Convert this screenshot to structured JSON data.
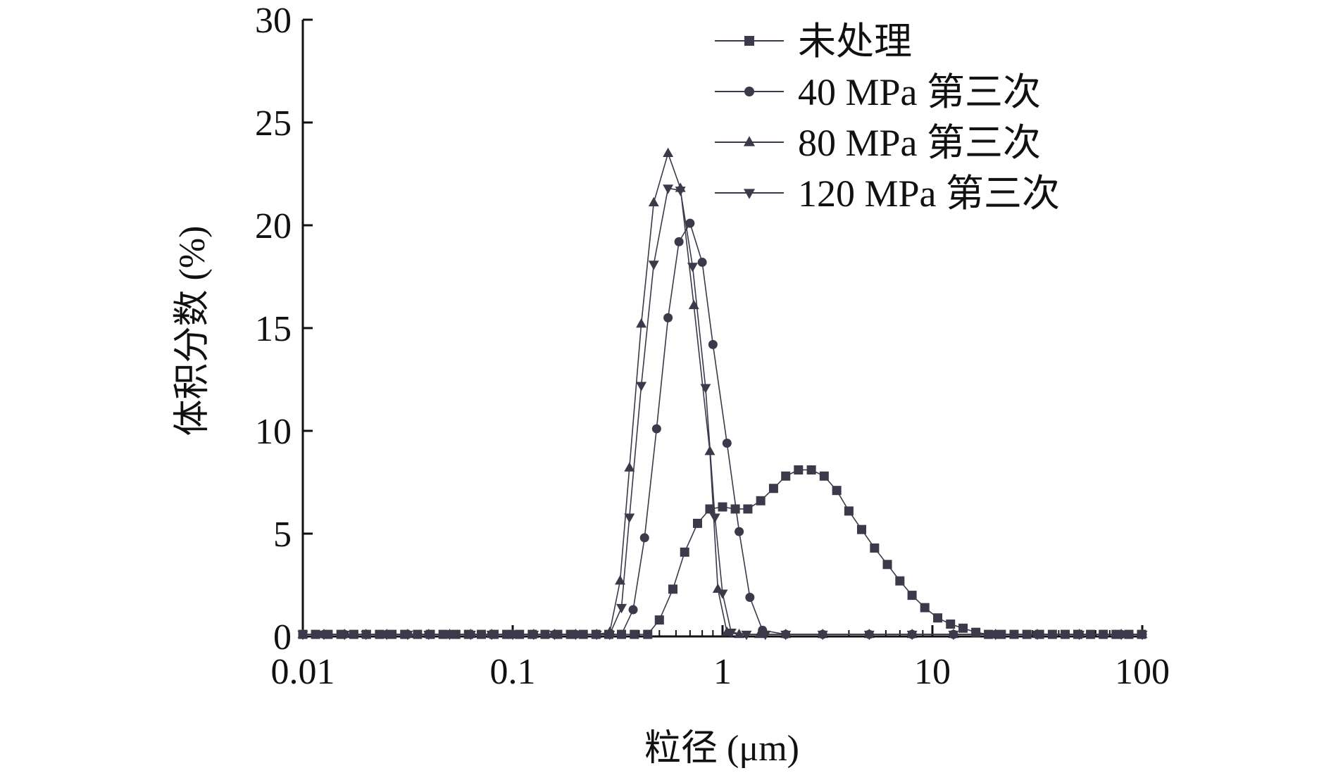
{
  "chart_data": {
    "type": "line",
    "title": "",
    "xlabel": "粒径 (μm)",
    "ylabel": "体积分数 (%)",
    "xscale": "log",
    "xlim": [
      0.01,
      100
    ],
    "ylim": [
      0,
      30
    ],
    "xticks": [
      {
        "value": 0.01,
        "label": "0.01"
      },
      {
        "value": 0.1,
        "label": "0.1"
      },
      {
        "value": 1,
        "label": "1"
      },
      {
        "value": 10,
        "label": "10"
      },
      {
        "value": 100,
        "label": "100"
      }
    ],
    "yticks": [
      {
        "value": 0,
        "label": "0"
      },
      {
        "value": 5,
        "label": "5"
      },
      {
        "value": 10,
        "label": "10"
      },
      {
        "value": 15,
        "label": "15"
      },
      {
        "value": 20,
        "label": "20"
      },
      {
        "value": 25,
        "label": "25"
      },
      {
        "value": 30,
        "label": "30"
      }
    ],
    "grid": false,
    "legend_position": "top-right",
    "line_color": "#3a3a4a",
    "series": [
      {
        "name": "未处理",
        "marker": "square",
        "x": [
          0.01,
          0.0115,
          0.0132,
          0.0152,
          0.0175,
          0.0201,
          0.0232,
          0.0266,
          0.0306,
          0.0352,
          0.0405,
          0.0466,
          0.0536,
          0.0616,
          0.0709,
          0.0815,
          0.0937,
          0.1078,
          0.124,
          0.1426,
          0.164,
          0.1886,
          0.2169,
          0.2494,
          0.287,
          0.33,
          0.38,
          0.44,
          0.5,
          0.58,
          0.66,
          0.76,
          0.87,
          1.0,
          1.15,
          1.32,
          1.52,
          1.75,
          2.0,
          2.3,
          2.65,
          3.05,
          3.5,
          4.0,
          4.6,
          5.3,
          6.1,
          7.0,
          8.0,
          9.2,
          10.6,
          12.2,
          14.0,
          16.1,
          18.5,
          21.3,
          24.5,
          28.2,
          32.4,
          37.3,
          42.9,
          49.3,
          56.7,
          65.2,
          75.0,
          86.3,
          99.2
        ],
        "y": [
          0.1,
          0.1,
          0.1,
          0.1,
          0.1,
          0.1,
          0.1,
          0.1,
          0.1,
          0.1,
          0.1,
          0.1,
          0.1,
          0.1,
          0.1,
          0.1,
          0.1,
          0.1,
          0.1,
          0.1,
          0.1,
          0.1,
          0.1,
          0.1,
          0.1,
          0.1,
          0.1,
          0.1,
          0.8,
          2.3,
          4.1,
          5.5,
          6.2,
          6.3,
          6.2,
          6.2,
          6.6,
          7.2,
          7.8,
          8.1,
          8.1,
          7.8,
          7.1,
          6.1,
          5.2,
          4.3,
          3.5,
          2.7,
          2.0,
          1.4,
          0.9,
          0.6,
          0.4,
          0.2,
          0.1,
          0.1,
          0.1,
          0.1,
          0.1,
          0.1,
          0.1,
          0.1,
          0.1,
          0.1,
          0.1,
          0.1,
          0.1
        ]
      },
      {
        "name": "40 MPa 第三次",
        "marker": "circle",
        "x": [
          0.01,
          0.0126,
          0.0158,
          0.02,
          0.0251,
          0.0316,
          0.0398,
          0.0501,
          0.0631,
          0.0794,
          0.1,
          0.1259,
          0.1585,
          0.1995,
          0.2512,
          0.29,
          0.33,
          0.375,
          0.425,
          0.485,
          0.55,
          0.62,
          0.7,
          0.8,
          0.9,
          1.05,
          1.2,
          1.35,
          1.55,
          2.0,
          3.0,
          5.0,
          8.0,
          12.6,
          20.0,
          31.6,
          50.1,
          79.4,
          100
        ],
        "y": [
          0.1,
          0.1,
          0.1,
          0.1,
          0.1,
          0.1,
          0.1,
          0.1,
          0.1,
          0.1,
          0.1,
          0.1,
          0.1,
          0.1,
          0.1,
          0.1,
          0.1,
          1.3,
          4.8,
          10.1,
          15.5,
          19.2,
          20.1,
          18.2,
          14.2,
          9.4,
          5.1,
          1.9,
          0.3,
          0.1,
          0.1,
          0.1,
          0.1,
          0.1,
          0.1,
          0.1,
          0.1,
          0.1,
          0.1
        ]
      },
      {
        "name": "80 MPa  第三次",
        "marker": "triangle-up",
        "x": [
          0.01,
          0.0126,
          0.0158,
          0.02,
          0.0251,
          0.0316,
          0.0398,
          0.0501,
          0.0631,
          0.0794,
          0.1,
          0.1259,
          0.1585,
          0.1995,
          0.2512,
          0.29,
          0.325,
          0.36,
          0.41,
          0.47,
          0.55,
          0.63,
          0.73,
          0.87,
          0.95,
          1.05,
          1.2,
          1.5,
          2.0,
          3.0,
          5.0,
          8.0,
          12.6,
          20.0,
          31.6,
          50.1,
          79.4,
          100
        ],
        "y": [
          0.1,
          0.1,
          0.1,
          0.1,
          0.1,
          0.1,
          0.1,
          0.1,
          0.1,
          0.1,
          0.1,
          0.1,
          0.1,
          0.1,
          0.1,
          0.2,
          2.7,
          8.2,
          15.2,
          21.1,
          23.5,
          21.8,
          16.1,
          9.0,
          2.3,
          0.2,
          0.1,
          0.1,
          0.1,
          0.1,
          0.1,
          0.1,
          0.1,
          0.1,
          0.1,
          0.1,
          0.1,
          0.1
        ]
      },
      {
        "name": "120 MPa  第三次",
        "marker": "triangle-down",
        "x": [
          0.01,
          0.0126,
          0.0158,
          0.02,
          0.0251,
          0.0316,
          0.0398,
          0.0501,
          0.0631,
          0.0794,
          0.1,
          0.1259,
          0.1585,
          0.1995,
          0.2512,
          0.29,
          0.33,
          0.36,
          0.41,
          0.47,
          0.55,
          0.63,
          0.72,
          0.83,
          0.92,
          1.0,
          1.1,
          1.3,
          1.6,
          2.0,
          3.0,
          5.0,
          8.0,
          12.6,
          20.0,
          31.6,
          50.1,
          79.4,
          100
        ],
        "y": [
          0.1,
          0.1,
          0.1,
          0.1,
          0.1,
          0.1,
          0.1,
          0.1,
          0.1,
          0.1,
          0.1,
          0.1,
          0.1,
          0.1,
          0.1,
          0.1,
          1.4,
          5.8,
          12.2,
          18.1,
          21.8,
          21.7,
          18.0,
          12.1,
          5.8,
          2.1,
          0.2,
          0.1,
          0.1,
          0.1,
          0.1,
          0.1,
          0.1,
          0.1,
          0.1,
          0.1,
          0.1,
          0.1,
          0.1
        ]
      }
    ]
  }
}
